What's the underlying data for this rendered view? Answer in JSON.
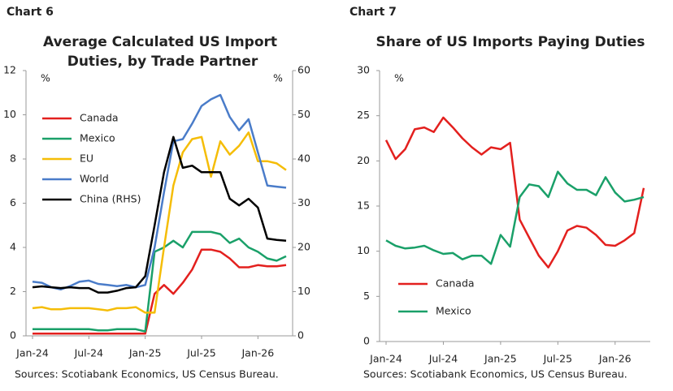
{
  "chart_data": [
    {
      "type": "line",
      "chart_label": "Chart 6",
      "title": "Average Calculated US Import Duties, by Trade Partner",
      "y_unit": "%",
      "y2_unit": "%",
      "categories": [
        "Jan-24",
        null,
        null,
        null,
        null,
        null,
        "Jul-24",
        null,
        null,
        null,
        null,
        null,
        "Jan-25",
        null,
        null,
        null,
        null,
        null,
        "Jul-25",
        null,
        null,
        null,
        null,
        null,
        "Jan-26",
        null,
        null,
        null
      ],
      "ylim": [
        0,
        12
      ],
      "yticks": [
        0,
        2,
        4,
        6,
        8,
        10,
        12
      ],
      "y2lim": [
        0,
        60
      ],
      "y2ticks": [
        0,
        10,
        20,
        30,
        40,
        50,
        60
      ],
      "series": [
        {
          "name": "Canada",
          "color": "#e3201e",
          "values": [
            0.1,
            0.1,
            0.1,
            0.1,
            0.1,
            0.1,
            0.1,
            0.1,
            0.1,
            0.1,
            0.1,
            0.1,
            0.1,
            1.9,
            2.3,
            1.9,
            2.4,
            3.0,
            3.9,
            3.9,
            3.8,
            3.5,
            3.1,
            3.1,
            3.2,
            3.15,
            3.15,
            3.2
          ]
        },
        {
          "name": "Mexico",
          "color": "#1aa069",
          "values": [
            0.3,
            0.3,
            0.3,
            0.3,
            0.3,
            0.3,
            0.3,
            0.25,
            0.25,
            0.3,
            0.3,
            0.3,
            0.2,
            3.8,
            4.0,
            4.3,
            4.0,
            4.7,
            4.7,
            4.7,
            4.6,
            4.2,
            4.4,
            4.0,
            3.8,
            3.5,
            3.4,
            3.6
          ]
        },
        {
          "name": "EU",
          "color": "#f5bd07",
          "values": [
            1.25,
            1.3,
            1.2,
            1.2,
            1.25,
            1.25,
            1.25,
            1.2,
            1.15,
            1.25,
            1.25,
            1.3,
            1.05,
            1.05,
            4.0,
            6.8,
            8.3,
            8.9,
            9.0,
            7.2,
            8.8,
            8.2,
            8.6,
            9.2,
            7.9,
            7.9,
            7.8,
            7.5
          ]
        },
        {
          "name": "World",
          "color": "#4a7cc9",
          "values": [
            2.45,
            2.4,
            2.2,
            2.1,
            2.25,
            2.45,
            2.5,
            2.35,
            2.3,
            2.25,
            2.3,
            2.2,
            2.3,
            4.0,
            6.5,
            8.8,
            8.9,
            9.6,
            10.4,
            10.7,
            10.9,
            9.9,
            9.3,
            9.8,
            8.3,
            6.8,
            6.75,
            6.7
          ]
        },
        {
          "name": "China (RHS)",
          "color": "#000000",
          "axis": "y2",
          "values": [
            11,
            11.2,
            11,
            10.8,
            11,
            10.8,
            10.8,
            9.8,
            9.8,
            10.2,
            10.8,
            11,
            13.5,
            25,
            37,
            45,
            38,
            38.5,
            37,
            37,
            37,
            31,
            29.5,
            31,
            29,
            22,
            21.7,
            21.5
          ]
        }
      ],
      "source": "Sources: Scotiabank Economics, US Census Bureau."
    },
    {
      "type": "line",
      "chart_label": "Chart 7",
      "title": "Share of US Imports Paying Duties",
      "y_unit": "%",
      "categories": [
        "Jan-24",
        null,
        null,
        null,
        null,
        null,
        "Jul-24",
        null,
        null,
        null,
        null,
        null,
        "Jan-25",
        null,
        null,
        null,
        null,
        null,
        "Jul-25",
        null,
        null,
        null,
        null,
        null,
        "Jan-26",
        null,
        null,
        null
      ],
      "ylim": [
        0,
        30
      ],
      "yticks": [
        0,
        5,
        10,
        15,
        20,
        25,
        30
      ],
      "series": [
        {
          "name": "Canada",
          "color": "#e3201e",
          "values": [
            22.3,
            20.2,
            21.3,
            23.5,
            23.7,
            23.2,
            24.8,
            23.7,
            22.5,
            21.5,
            20.7,
            21.5,
            21.3,
            22,
            13.5,
            11.5,
            9.5,
            8.2,
            10,
            12.3,
            12.8,
            12.6,
            11.8,
            10.7,
            10.6,
            11.2,
            12,
            17
          ]
        },
        {
          "name": "Mexico",
          "color": "#1aa069",
          "values": [
            11.2,
            10.6,
            10.3,
            10.4,
            10.6,
            10.1,
            9.7,
            9.8,
            9.1,
            9.5,
            9.5,
            8.6,
            11.8,
            10.5,
            16,
            17.4,
            17.2,
            16,
            18.8,
            17.5,
            16.8,
            16.8,
            16.2,
            18.2,
            16.5,
            15.5,
            15.7,
            16
          ]
        }
      ],
      "source": "Sources: Scotiabank Economics, US Census Bureau."
    }
  ]
}
